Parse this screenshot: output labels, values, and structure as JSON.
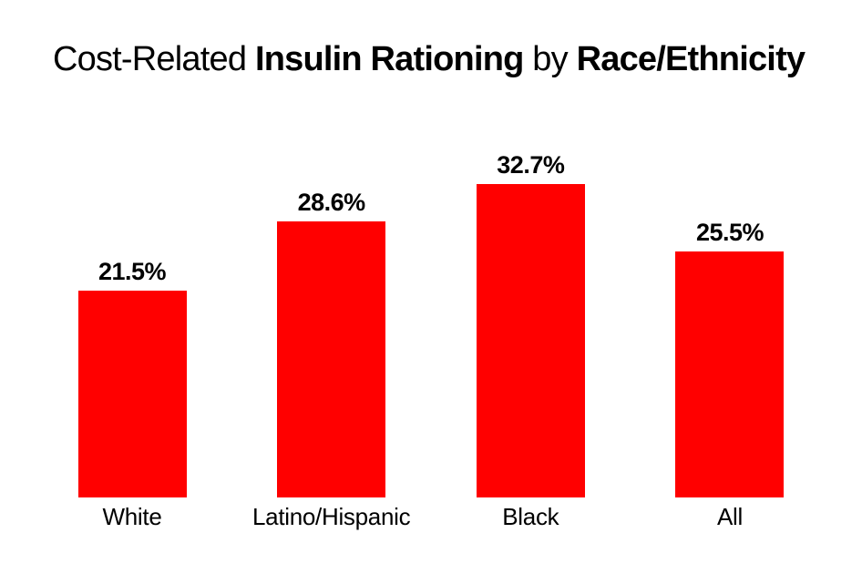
{
  "title": {
    "segments": [
      {
        "text": "Cost-Related ",
        "bold": false
      },
      {
        "text": "Insulin Rationing",
        "bold": true
      },
      {
        "text": " by ",
        "bold": false
      },
      {
        "text": "Race/Ethnicity",
        "bold": true
      }
    ],
    "full_text": "Cost-Related Insulin Rationing by Race/Ethnicity"
  },
  "chart_data": {
    "type": "bar",
    "title": "Cost-Related Insulin Rationing by Race/Ethnicity",
    "categories": [
      "White",
      "Latino/Hispanic",
      "Black",
      "All"
    ],
    "values": [
      21.5,
      28.6,
      32.7,
      25.5
    ],
    "value_labels": [
      "21.5%",
      "28.6%",
      "32.7%",
      "25.5%"
    ],
    "xlabel": "",
    "ylabel": "",
    "ylim": [
      0,
      35.9
    ],
    "grid": false,
    "legend": false,
    "axes_visible": false,
    "bar_color": "#ff0000",
    "text_color": "#000000",
    "background_color": "#ffffff"
  }
}
